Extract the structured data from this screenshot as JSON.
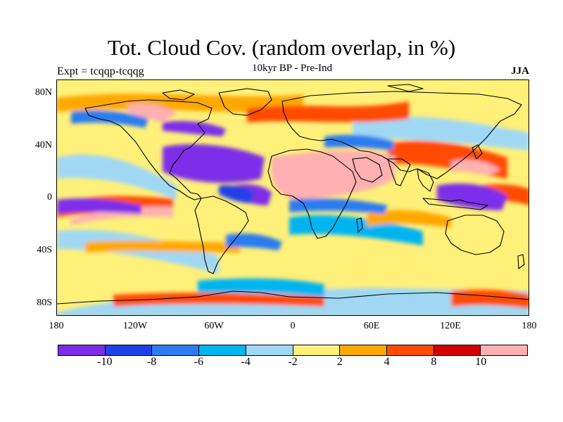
{
  "header": {
    "title": "Tot. Cloud Cov. (random overlap, in %)",
    "subtitle": "10kyr BP - Pre-Ind",
    "left_label": "Expt = tcqqp-tcqqg",
    "right_label": "JJA"
  },
  "axes": {
    "lat_labels": [
      "80N",
      "40N",
      "0",
      "40S",
      "80S"
    ],
    "lon_labels": [
      "180",
      "120W",
      "60W",
      "0",
      "60E",
      "120E",
      "180"
    ]
  },
  "colorbar": {
    "colors": [
      "#7b2ee8",
      "#2040e8",
      "#2c7cf0",
      "#00b4f0",
      "#a0d8f4",
      "#fff07a",
      "#ffa800",
      "#ff4c00",
      "#d40000",
      "#ffb0b0"
    ],
    "labels": [
      "-10",
      "-8",
      "-6",
      "-4",
      "-2",
      "2",
      "4",
      "8",
      "10"
    ]
  },
  "map": {
    "background_color": "#fff07a",
    "coastline_color": "#000000"
  }
}
